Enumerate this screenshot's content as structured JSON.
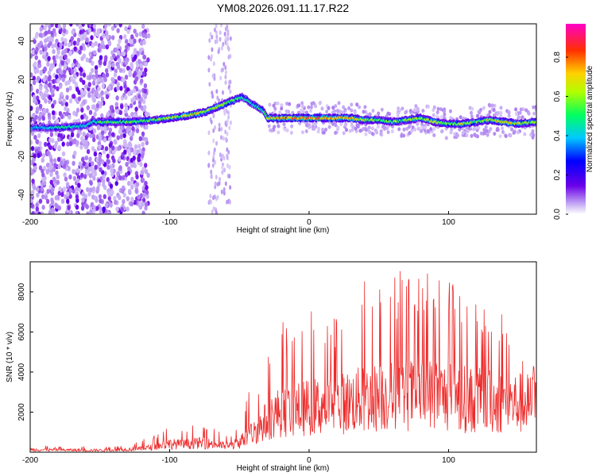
{
  "figure_title": "YM08.2026.091.11.17.R22",
  "chart_data": [
    {
      "type": "heatmap",
      "title": "YM08.2026.091.11.17.R22",
      "xlabel": "Height of straight line (km)",
      "ylabel": "Frequency (Hz)",
      "xlim": [
        -200,
        163
      ],
      "ylim": [
        -50,
        49
      ],
      "x_ticks": [
        -200,
        -100,
        0,
        100
      ],
      "x_tick_labels": [
        "-200",
        "-100",
        "0",
        "100"
      ],
      "y_ticks": [
        40,
        20,
        0,
        -20,
        -40
      ],
      "y_tick_labels": [
        "40",
        "20",
        "0",
        "-20",
        "-40"
      ],
      "colorbar": {
        "label": "Normalized spectral amplitude",
        "range": [
          0,
          0.97
        ],
        "ticks": [
          0,
          0.2,
          0.4,
          0.6,
          0.8
        ],
        "tick_labels": [
          "0.0",
          "0.2",
          "0.4",
          "0.6",
          "0.8"
        ],
        "colormap": [
          "#ffffff",
          "#b89cf0",
          "#6a00e8",
          "#0000ff",
          "#00c8ff",
          "#00ff50",
          "#c8ff00",
          "#ffd000",
          "#ff3000",
          "#ff00c0"
        ]
      },
      "ridge": {
        "height_km": [
          -200,
          -180,
          -160,
          -155,
          -130,
          -110,
          -90,
          -75,
          -65,
          -55,
          -48,
          -40,
          -33,
          -30,
          -20,
          -10,
          0,
          10,
          20,
          30,
          40,
          50,
          60,
          70,
          80,
          90,
          100,
          110,
          120,
          130,
          140,
          150,
          163
        ],
        "frequency_hz": [
          -5,
          -5,
          -4,
          -2,
          -2,
          -1,
          1,
          3,
          6,
          9,
          11,
          7,
          4,
          0,
          0,
          0,
          0,
          0,
          0,
          0,
          -1,
          -1,
          -2,
          -1,
          0,
          -2,
          -3,
          -3,
          -2,
          -1,
          -2,
          -3,
          -2
        ],
        "amplitude": [
          0.4,
          0.5,
          0.45,
          0.55,
          0.6,
          0.6,
          0.7,
          0.72,
          0.7,
          0.65,
          0.55,
          0.5,
          0.55,
          0.7,
          0.8,
          0.85,
          0.9,
          0.85,
          0.8,
          0.75,
          0.65,
          0.6,
          0.6,
          0.65,
          0.7,
          0.65,
          0.6,
          0.7,
          0.6,
          0.7,
          0.75,
          0.7,
          0.6
        ]
      }
    },
    {
      "type": "line",
      "xlabel": "Height of straight line (km)",
      "ylabel": "SNR (10 * v/v)",
      "xlim": [
        -200,
        163
      ],
      "ylim": [
        0,
        9500
      ],
      "x_ticks": [
        -200,
        -100,
        0,
        100
      ],
      "x_tick_labels": [
        "-200",
        "-100",
        "0",
        "100"
      ],
      "y_ticks": [
        2000,
        4000,
        6000,
        8000
      ],
      "y_tick_labels": [
        "2000",
        "4000",
        "6000",
        "8000"
      ],
      "series": [
        {
          "name": "SNR",
          "color": "#ee2a2a",
          "envelope": {
            "height_km": [
              -200,
              -180,
              -160,
              -140,
              -120,
              -110,
              -100,
              -90,
              -80,
              -70,
              -60,
              -55,
              -50,
              -45,
              -40,
              -35,
              -30,
              -25,
              -20,
              -10,
              0,
              10,
              20,
              30,
              40,
              50,
              60,
              70,
              80,
              90,
              100,
              110,
              120,
              130,
              140,
              150,
              163
            ],
            "median": [
              180,
              160,
              140,
              150,
              250,
              400,
              600,
              550,
              650,
              600,
              450,
              500,
              700,
              1100,
              1400,
              1800,
              2300,
              2700,
              2900,
              3000,
              3200,
              3300,
              3400,
              3600,
              3800,
              3900,
              4000,
              4100,
              4000,
              4200,
              3900,
              3800,
              3700,
              3600,
              3500,
              3500,
              3400
            ],
            "peak": [
              350,
              300,
              300,
              320,
              600,
              1000,
              1300,
              1200,
              1400,
              1300,
              900,
              1000,
              1800,
              2800,
              3500,
              4200,
              5200,
              6000,
              6500,
              7000,
              7200,
              6800,
              7000,
              7800,
              8600,
              8800,
              9200,
              9300,
              8700,
              9500,
              8900,
              8400,
              7900,
              7600,
              7300,
              5600,
              4800
            ]
          }
        }
      ]
    }
  ]
}
